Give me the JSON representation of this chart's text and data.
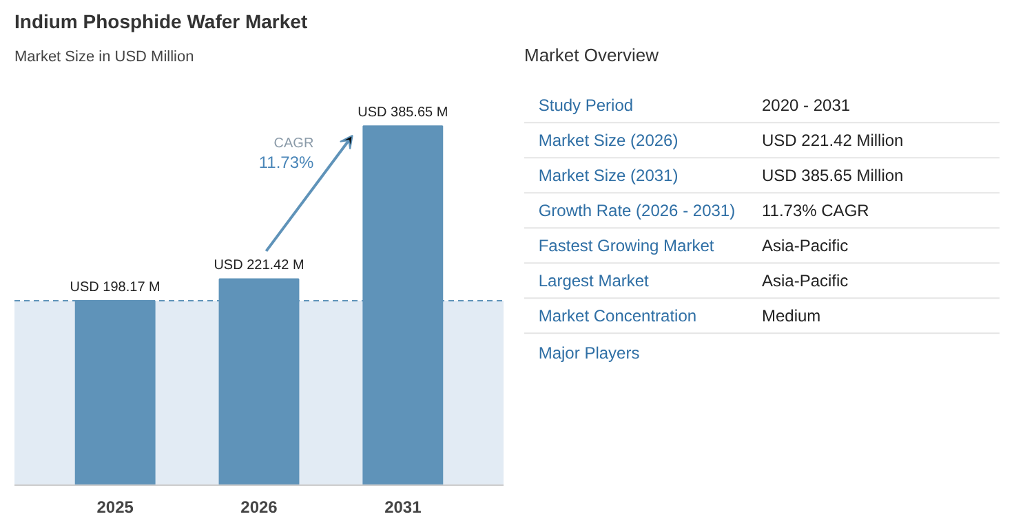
{
  "chart_data": [
    {
      "type": "bar",
      "title": "Indium Phosphide Wafer Market",
      "subtitle": "Market Size in USD Million",
      "categories": [
        "2025",
        "2026",
        "2031"
      ],
      "values": [
        198.17,
        221.42,
        385.65
      ],
      "color": "#5f93b9",
      "value_labels": [
        "USD 198.17 M",
        "USD 221.42 M",
        "USD 385.65 M"
      ],
      "annotations": [
        "CAGR",
        "11.73%"
      ],
      "ref_lines": [
        {
          "axis": "y",
          "value": 198.17,
          "color": "#5f93b9",
          "line_style": "dashed"
        }
      ],
      "bands": [
        {
          "axis": "y",
          "from": 0,
          "to": 198.17,
          "color": "#e2ebf4"
        }
      ],
      "grid": false
    },
    {
      "type": "other",
      "title": "Market Overview",
      "categories": [
        "Study Period",
        "Market Size (2026)",
        "Market Size (2031)",
        "Growth Rate (2026 - 2031)",
        "Fastest Growing Market",
        "Largest Market",
        "Market Concentration"
      ],
      "value_labels": [
        "2020 - 2031",
        "USD 221.42 Million",
        "USD 385.65 Million",
        "11.73% CAGR",
        "Asia-Pacific",
        "Asia-Pacific",
        "Medium"
      ],
      "annotations": [
        "Major Players"
      ]
    }
  ]
}
